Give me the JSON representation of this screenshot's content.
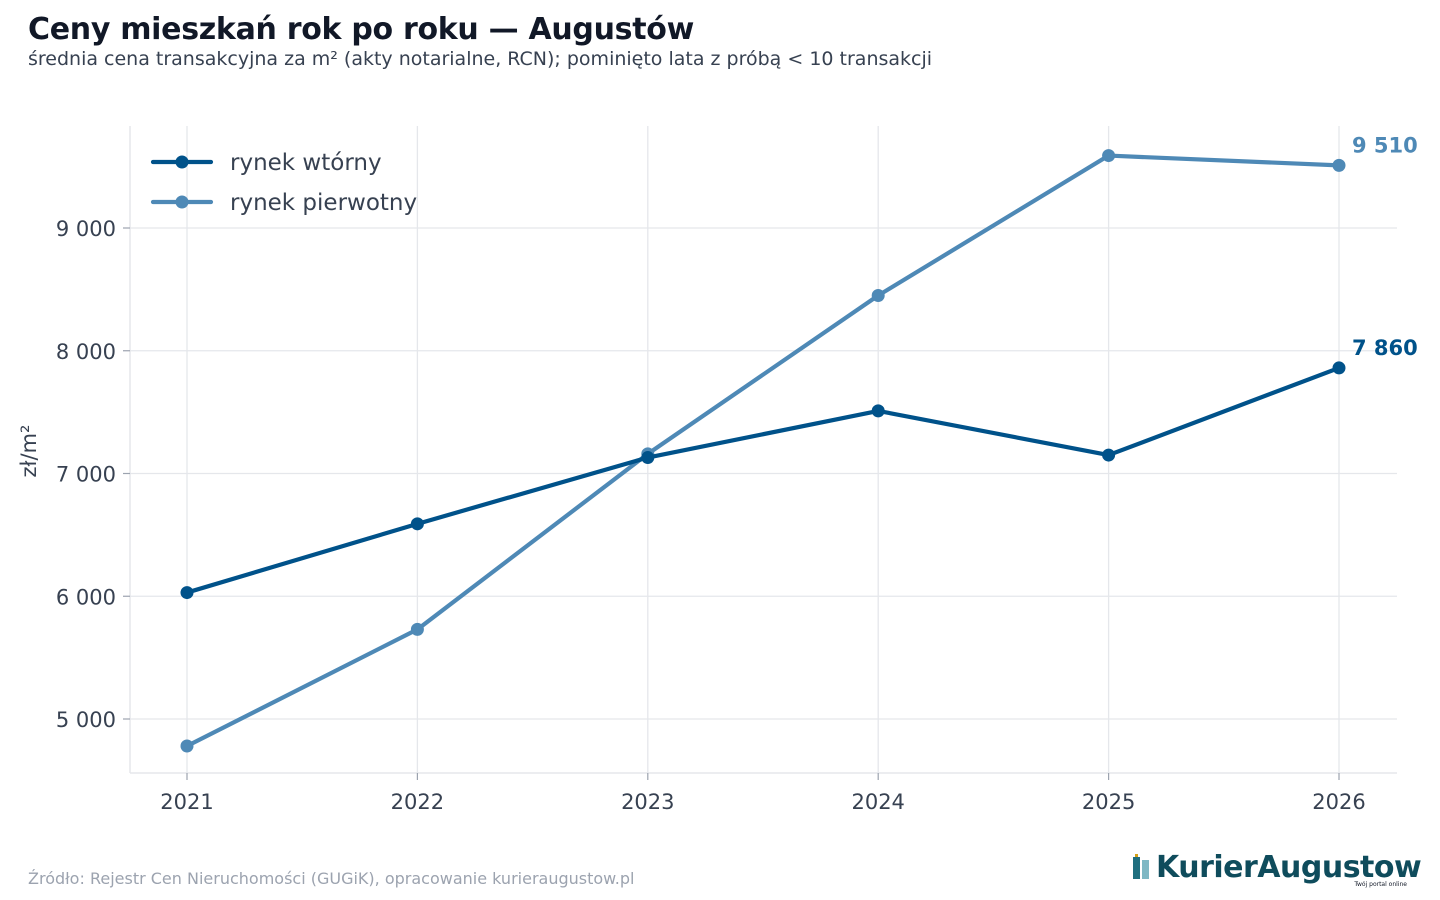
{
  "header": {
    "title": "Ceny mieszkań rok po roku — Augustów",
    "subtitle": "średnia cena transakcyjna za m² (akty notarialne, RCN); pominięto lata z próbą < 10 transakcji"
  },
  "footer": {
    "source": "Źródło: Rejestr Cen Nieruchomości (GUGiK), opracowanie kurieraugustow.pl",
    "logo_text": "KurierAugustow",
    "logo_tagline": "Twój portal online"
  },
  "colors": {
    "secondary": "#00528a",
    "primary": "#4e89b6",
    "grid": "#e5e7eb",
    "axis": "#e5e7eb"
  },
  "chart_data": {
    "type": "line",
    "title": "Ceny mieszkań rok po roku — Augustów",
    "subtitle": "średnia cena transakcyjna za m² (akty notarialne, RCN); pominięto lata z próbą < 10 transakcji",
    "xlabel": "",
    "ylabel": "zł/m²",
    "x": [
      2021,
      2022,
      2023,
      2024,
      2025,
      2026
    ],
    "x_tick_labels": [
      "2021",
      "2022",
      "2023",
      "2024",
      "2025",
      "2026"
    ],
    "ylim": [
      4550,
      9820
    ],
    "y_ticks": [
      5000,
      6000,
      7000,
      8000,
      9000
    ],
    "y_tick_labels": [
      "5 000",
      "6 000",
      "7 000",
      "8 000",
      "9 000"
    ],
    "grid": true,
    "legend_position": "top-left",
    "series": [
      {
        "name": "rynek wtórny",
        "color": "#00528a",
        "values": [
          6030,
          6590,
          7130,
          7510,
          7150,
          7860
        ],
        "end_label": "7 860"
      },
      {
        "name": "rynek pierwotny",
        "color": "#4e89b6",
        "values": [
          4780,
          5730,
          7160,
          8450,
          9590,
          9510
        ],
        "end_label": "9 510"
      }
    ]
  }
}
